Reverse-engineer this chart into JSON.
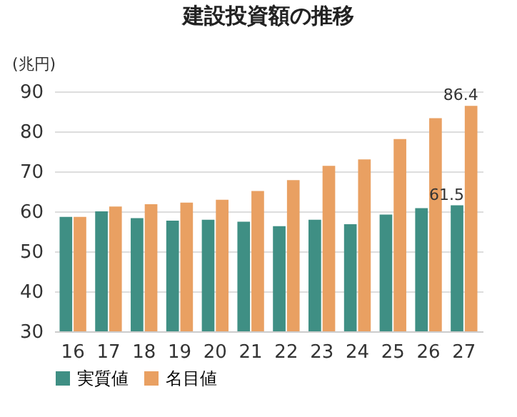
{
  "chart_data": {
    "type": "bar",
    "title": "建設投資額の推移",
    "ylabel": "(兆円)",
    "categories": [
      "16",
      "17",
      "18",
      "19",
      "20",
      "21",
      "22",
      "23",
      "24",
      "25",
      "26",
      "27"
    ],
    "series": [
      {
        "name": "実質値",
        "color": "#3f8f84",
        "values": [
          58.6,
          60.0,
          58.3,
          57.7,
          57.9,
          57.4,
          56.3,
          57.9,
          56.8,
          59.2,
          60.8,
          61.5
        ],
        "value_labels": [
          null,
          null,
          null,
          null,
          null,
          null,
          null,
          null,
          null,
          null,
          null,
          "61.5"
        ]
      },
      {
        "name": "名目値",
        "color": "#e9a062",
        "values": [
          58.6,
          61.2,
          61.8,
          62.2,
          62.9,
          65.1,
          67.8,
          71.4,
          73.0,
          78.1,
          83.3,
          86.4
        ],
        "value_labels": [
          null,
          null,
          null,
          null,
          null,
          null,
          null,
          null,
          null,
          null,
          null,
          "86.4"
        ]
      }
    ],
    "ylim": [
      30,
      90
    ],
    "yticks": [
      30,
      40,
      50,
      60,
      70,
      80,
      90
    ],
    "grid": "y",
    "legend": "bottom"
  }
}
